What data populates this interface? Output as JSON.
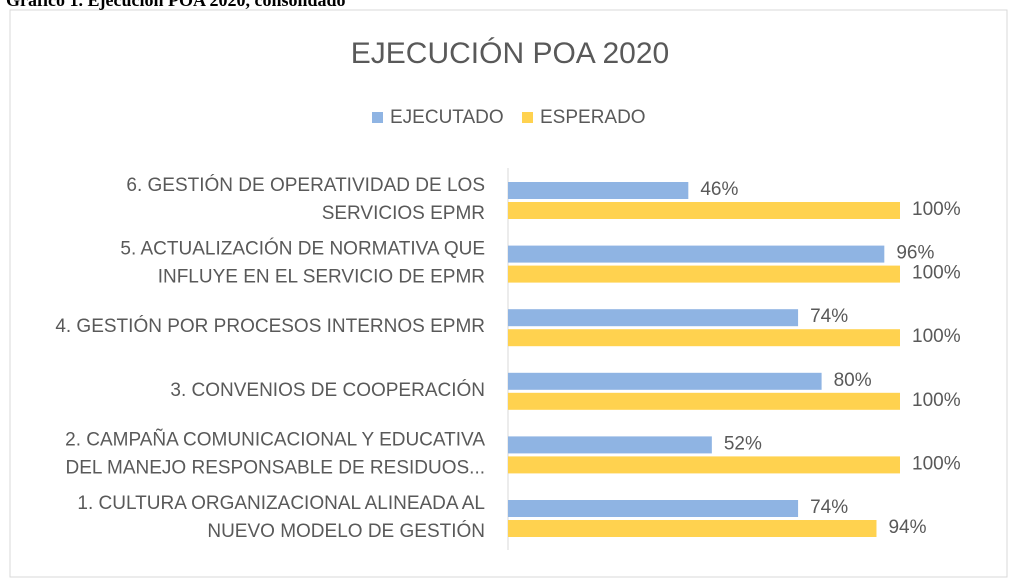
{
  "caption": "Gráfico 1. Ejecución POA 2020, consolidado",
  "chart_data": {
    "type": "barh",
    "title": "EJECUCIÓN POA 2020",
    "categories": [
      [
        "1. CULTURA ORGANIZACIONAL ALINEADA AL",
        "NUEVO MODELO DE GESTIÓN"
      ],
      [
        "2. CAMPAÑA COMUNICACIONAL Y EDUCATIVA",
        "DEL MANEJO RESPONSABLE DE RESIDUOS..."
      ],
      [
        "3. CONVENIOS DE COOPERACIÓN"
      ],
      [
        "4. GESTIÓN POR PROCESOS INTERNOS EPMR"
      ],
      [
        "5. ACTUALIZACIÓN DE NORMATIVA QUE",
        "INFLUYE EN EL SERVICIO DE EPMR"
      ],
      [
        "6. GESTIÓN DE OPERATIVIDAD DE LOS",
        "SERVICIOS EPMR"
      ]
    ],
    "series": [
      {
        "name": "EJECUTADO",
        "color": "#8fb4e3",
        "values": [
          74,
          52,
          80,
          74,
          96,
          46
        ],
        "value_labels": [
          "74%",
          "52%",
          "80%",
          "74%",
          "96%",
          "46%"
        ]
      },
      {
        "name": "ESPERADO",
        "color": "#ffd24f",
        "values": [
          94,
          100,
          100,
          100,
          100,
          100
        ],
        "value_labels": [
          "94%",
          "100%",
          "100%",
          "100%",
          "100%",
          "100%"
        ]
      }
    ],
    "xlim": [
      0,
      100
    ],
    "legend": "top"
  }
}
